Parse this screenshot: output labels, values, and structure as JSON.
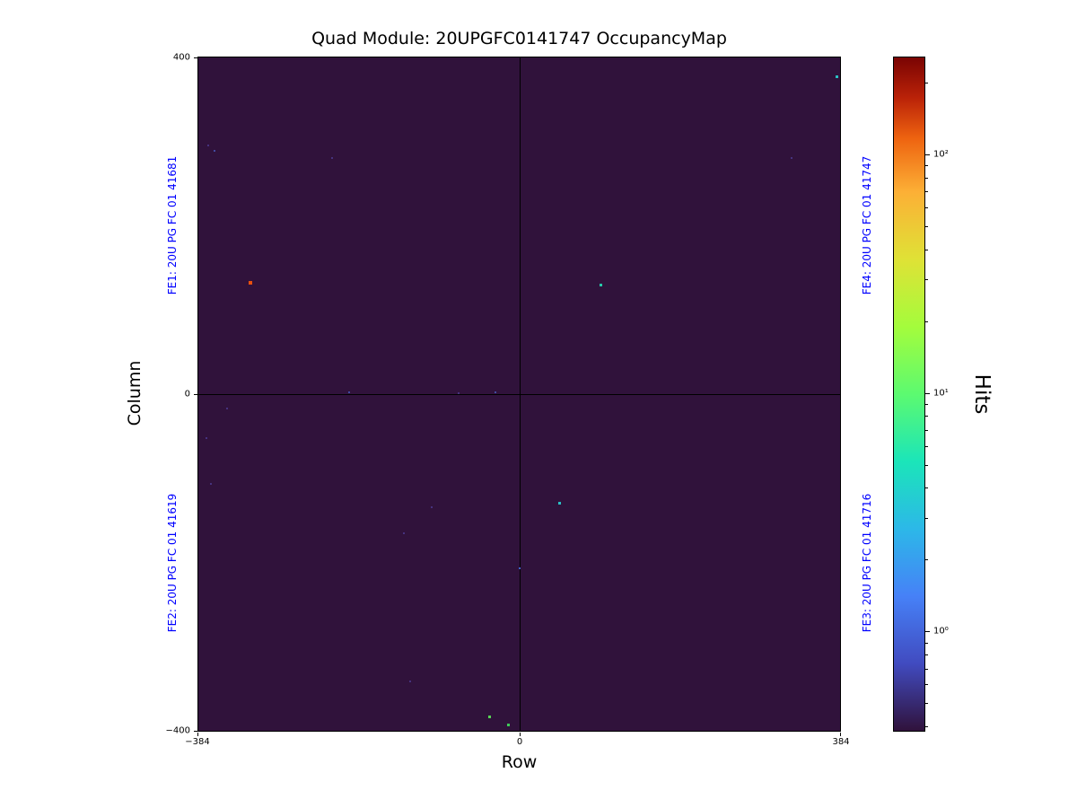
{
  "title": "Quad Module: 20UPGFC0141747 OccupancyMap",
  "axes": {
    "xlabel": "Row",
    "ylabel": "Column",
    "x_tick_labels": [
      "−384",
      "0",
      "384"
    ],
    "y_tick_labels": [
      "400",
      "0",
      "−400"
    ]
  },
  "fe_labels": {
    "color": "#0000ff",
    "fe1": "FE1: 20U PG FC 01 41681",
    "fe2": "FE2: 20U PG FC 01 41619",
    "fe3": "FE3: 20U PG FC 01 41716",
    "fe4": "FE4: 20U PG FC 01 41747"
  },
  "colorbar": {
    "label": "Hits",
    "tick_labels": [
      "10²",
      "10¹",
      "10⁰"
    ],
    "scale": "log",
    "colormap": "turbo"
  },
  "chart_data": {
    "type": "heatmap",
    "title": "Quad Module: 20UPGFC0141747 OccupancyMap",
    "xlabel": "Row",
    "ylabel": "Column",
    "xlim": [
      -384,
      384
    ],
    "ylim": [
      -400,
      400
    ],
    "x_ticks": [
      -384,
      0,
      384
    ],
    "y_ticks": [
      -400,
      0,
      400
    ],
    "background_color": "#30123b",
    "quadrant_dividers": {
      "row": 0,
      "col": 0
    },
    "colorbar": {
      "label": "Hits",
      "scale": "log",
      "tick_values": [
        1,
        10,
        100
      ],
      "colormap": "turbo",
      "log10_min": -0.42,
      "log10_max": 2.41
    },
    "frontends": [
      {
        "name": "FE1",
        "serial": "20U PG FC 01 41681",
        "quadrant": "top-left"
      },
      {
        "name": "FE2",
        "serial": "20U PG FC 01 41619",
        "quadrant": "bottom-left"
      },
      {
        "name": "FE3",
        "serial": "20U PG FC 01 41716",
        "quadrant": "bottom-right"
      },
      {
        "name": "FE4",
        "serial": "20U PG FC 01 41747",
        "quadrant": "top-right"
      }
    ],
    "points": [
      {
        "row": -372,
        "col": 296,
        "hits": 1,
        "color": "#46327e"
      },
      {
        "row": -365,
        "col": 289,
        "hits": 1,
        "color": "#424aa0"
      },
      {
        "row": -224,
        "col": 281,
        "hits": 1,
        "color": "#46327e"
      },
      {
        "row": 326,
        "col": 281,
        "hits": 1,
        "color": "#46327e"
      },
      {
        "row": 380,
        "col": 377,
        "hits": 4,
        "color": "#2abfc4"
      },
      {
        "row": -322,
        "col": 132,
        "hits": 150,
        "color": "#e8500e"
      },
      {
        "row": 98,
        "col": 130,
        "hits": 4,
        "color": "#27c8a8"
      },
      {
        "row": -204,
        "col": 2,
        "hits": 1,
        "color": "#414a9f"
      },
      {
        "row": -72,
        "col": 1,
        "hits": 1,
        "color": "#46327e"
      },
      {
        "row": -28,
        "col": 2,
        "hits": 1,
        "color": "#414a9f"
      },
      {
        "row": -350,
        "col": -17,
        "hits": 1,
        "color": "#46327e"
      },
      {
        "row": -374,
        "col": -52,
        "hits": 1,
        "color": "#46327e"
      },
      {
        "row": -369,
        "col": -107,
        "hits": 1,
        "color": "#46327e"
      },
      {
        "row": -105,
        "col": -134,
        "hits": 1,
        "color": "#46327e"
      },
      {
        "row": 48,
        "col": -130,
        "hits": 3,
        "color": "#2abfc4"
      },
      {
        "row": -138,
        "col": -165,
        "hits": 1,
        "color": "#46327e"
      },
      {
        "row": 0,
        "col": -207,
        "hits": 2,
        "color": "#3f62c8"
      },
      {
        "row": -130,
        "col": -341,
        "hits": 1,
        "color": "#46327e"
      },
      {
        "row": -35,
        "col": -383,
        "hits": 8,
        "color": "#57d654"
      },
      {
        "row": -13,
        "col": -393,
        "hits": 12,
        "color": "#3fca59"
      }
    ]
  }
}
